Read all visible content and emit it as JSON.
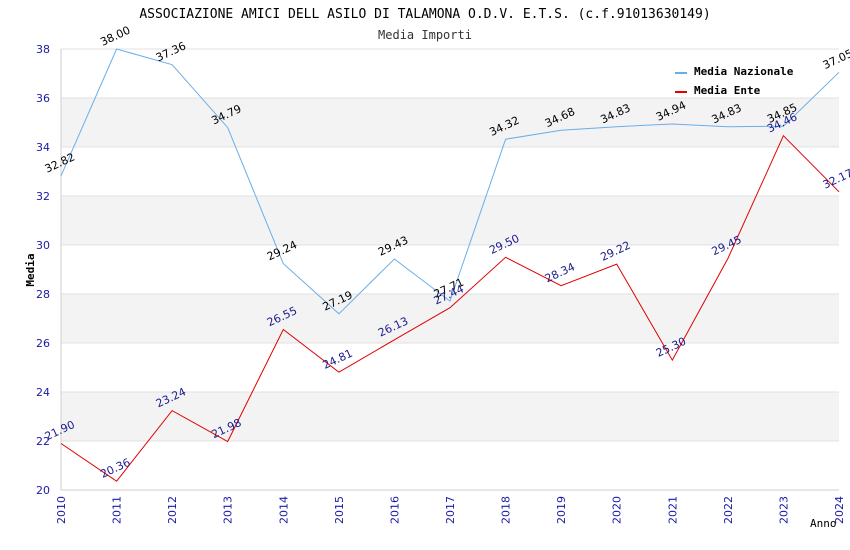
{
  "chart_data": {
    "type": "line",
    "title": "ASSOCIAZIONE AMICI DELL ASILO DI TALAMONA O.D.V. E.T.S. (c.f.91013630149)",
    "subtitle": "Media Importi",
    "xlabel": "Anno",
    "ylabel": "Media",
    "ylim": [
      20,
      38
    ],
    "yticks": [
      "20",
      "22",
      "24",
      "26",
      "28",
      "30",
      "32",
      "34",
      "36",
      "38"
    ],
    "x": [
      "2010",
      "2011",
      "2012",
      "2013",
      "2014",
      "2015",
      "2016",
      "2017",
      "2018",
      "2019",
      "2020",
      "2021",
      "2022",
      "2023",
      "2024"
    ],
    "legend_position": "top-right",
    "series": [
      {
        "name": "Media Nazionale",
        "color": "#6aaee8",
        "label_color": "#000000",
        "values": [
          32.82,
          38.0,
          37.36,
          34.79,
          29.24,
          27.19,
          29.43,
          27.71,
          34.32,
          34.68,
          34.83,
          34.94,
          34.83,
          34.85,
          37.05
        ],
        "labels": [
          "32.82",
          "38.00",
          "37.36",
          "34.79",
          "29.24",
          "27.19",
          "29.43",
          "27.71",
          "34.32",
          "34.68",
          "34.83",
          "34.94",
          "34.83",
          "34.85",
          "37.05"
        ]
      },
      {
        "name": "Media Ente",
        "color": "#e00000",
        "label_color": "#1a1a8c",
        "values": [
          21.9,
          20.36,
          23.24,
          21.98,
          26.55,
          24.81,
          26.13,
          27.44,
          29.5,
          28.34,
          29.22,
          25.3,
          29.45,
          34.46,
          32.17
        ],
        "labels": [
          "21.90",
          "20.36",
          "23.24",
          "21.98",
          "26.55",
          "24.81",
          "26.13",
          "27.44",
          "29.50",
          "28.34",
          "29.22",
          "25.30",
          "29.45",
          "34.46",
          "32.17"
        ]
      }
    ]
  }
}
